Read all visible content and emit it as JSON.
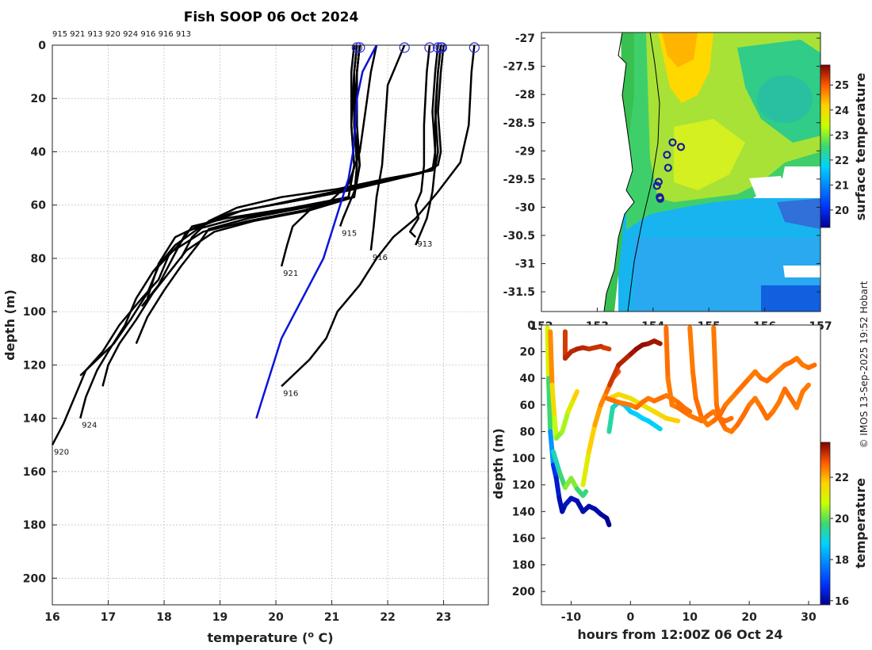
{
  "chart_data": [
    {
      "type": "line",
      "panel": "temperature-profiles",
      "title": "Fish SOOP 06 Oct 2024",
      "xlabel": "temperature (",
      "xlabel_sup": "o",
      "xlabel_tail": " C)",
      "ylabel": "depth (m)",
      "xlim": [
        16,
        23.8
      ],
      "ylim": [
        210,
        0
      ],
      "xticks": [
        16,
        17,
        18,
        19,
        20,
        21,
        22,
        23
      ],
      "yticks": [
        0,
        20,
        40,
        60,
        80,
        100,
        120,
        140,
        160,
        180,
        200
      ],
      "fish_id_row": "915 921 913 920 924 916 916 913",
      "surface_markers": [
        21.45,
        21.5,
        22.3,
        22.75,
        22.9,
        22.95,
        22.97,
        23.55
      ],
      "climatology": {
        "name": "climatology",
        "color": "#0a14d8",
        "x": [
          21.8,
          21.55,
          21.45,
          21.42,
          21.38,
          21.3,
          21.15,
          21.0,
          20.85,
          20.6,
          20.35,
          20.1,
          19.95,
          19.8,
          19.65
        ],
        "y": [
          0,
          10,
          20,
          30,
          40,
          50,
          60,
          70,
          80,
          90,
          100,
          110,
          120,
          130,
          140
        ]
      },
      "series": [
        {
          "label": "920",
          "x": [
            21.45,
            21.4,
            21.35,
            21.4,
            21.3,
            20.5,
            19.5,
            18.7,
            18.1,
            17.9,
            17.6,
            17.2,
            16.9,
            16.6,
            16.4,
            16.2,
            16.0
          ],
          "y": [
            0,
            10,
            30,
            45,
            57,
            62,
            66,
            70,
            78,
            88,
            95,
            105,
            115,
            122,
            132,
            142,
            150
          ]
        },
        {
          "label": "924",
          "x": [
            21.5,
            21.45,
            21.4,
            21.45,
            21.4,
            20.4,
            19.3,
            18.6,
            18.2,
            17.8,
            17.5,
            17.3,
            17.0,
            16.8,
            16.6,
            16.5
          ],
          "y": [
            0,
            10,
            30,
            45,
            57,
            61,
            65,
            69,
            75,
            85,
            95,
            105,
            115,
            122,
            132,
            140
          ]
        },
        {
          "label": "",
          "x": [
            21.5,
            21.45,
            21.4,
            21.5,
            21.4,
            20.6,
            19.6,
            18.9,
            18.4,
            18.1,
            17.8,
            17.5,
            17.2,
            17.0,
            16.9
          ],
          "y": [
            0,
            10,
            30,
            45,
            57,
            62,
            66,
            70,
            77,
            85,
            93,
            103,
            112,
            120,
            128
          ]
        },
        {
          "label": "",
          "x": [
            21.4,
            21.35,
            21.35,
            21.4,
            21.3,
            20.3,
            19.1,
            18.5,
            18.3,
            17.9,
            17.7,
            17.4,
            17.1,
            16.8,
            16.5
          ],
          "y": [
            0,
            10,
            30,
            45,
            57,
            61,
            65,
            68,
            74,
            83,
            93,
            103,
            112,
            118,
            124
          ]
        },
        {
          "label": "",
          "x": [
            21.45,
            21.4,
            21.4,
            21.45,
            21.4,
            20.5,
            19.5,
            18.8,
            18.6,
            18.3,
            18.0,
            17.7,
            17.5
          ],
          "y": [
            0,
            10,
            30,
            45,
            57,
            61,
            65,
            69,
            75,
            83,
            92,
            102,
            112
          ]
        },
        {
          "label": "",
          "x": [
            23.0,
            22.95,
            22.9,
            22.95,
            22.9,
            22.6,
            22.0,
            21.2,
            20.2,
            19.4,
            18.9,
            18.4,
            18.2,
            17.9,
            17.6
          ],
          "y": [
            0,
            10,
            25,
            40,
            45,
            48,
            51,
            55,
            59,
            62,
            66,
            70,
            78,
            90,
            98
          ]
        },
        {
          "label": "",
          "x": [
            22.95,
            22.9,
            22.85,
            22.9,
            22.85,
            22.4,
            21.7,
            20.8,
            19.9,
            19.2,
            18.6,
            18.2,
            17.9,
            17.7
          ],
          "y": [
            0,
            10,
            25,
            40,
            46,
            49,
            52,
            56,
            60,
            63,
            68,
            72,
            82,
            95
          ]
        },
        {
          "label": "",
          "x": [
            22.9,
            22.85,
            22.8,
            22.85,
            22.8,
            22.0,
            21.1,
            20.1,
            19.3,
            18.8,
            18.5,
            18.3
          ],
          "y": [
            0,
            10,
            25,
            40,
            47,
            50,
            54,
            57,
            61,
            66,
            72,
            80
          ]
        },
        {
          "label": "913",
          "x": [
            22.75,
            22.7,
            22.65,
            22.65,
            22.6,
            22.5,
            22.55,
            22.4,
            22.5
          ],
          "y": [
            0,
            10,
            30,
            45,
            55,
            60,
            65,
            70,
            72
          ]
        },
        {
          "label": "",
          "x": [
            22.95,
            22.9,
            22.85,
            22.85,
            22.8,
            22.75,
            22.7,
            22.6,
            22.5
          ],
          "y": [
            0,
            10,
            30,
            45,
            55,
            60,
            65,
            70,
            75
          ]
        },
        {
          "label": "915",
          "x": [
            21.5,
            21.45,
            21.45,
            21.5,
            21.4,
            21.3,
            21.2,
            21.15
          ],
          "y": [
            0,
            10,
            30,
            45,
            55,
            60,
            65,
            68
          ]
        },
        {
          "label": "916",
          "x": [
            22.3,
            22.2,
            22.0,
            21.95,
            21.9,
            21.8,
            21.75,
            21.7
          ],
          "y": [
            0,
            5,
            15,
            30,
            45,
            57,
            68,
            77
          ]
        },
        {
          "label": "921",
          "x": [
            21.8,
            21.7,
            21.6,
            21.5,
            21.3,
            21.0,
            20.6,
            20.3,
            20.2,
            20.1
          ],
          "y": [
            0,
            10,
            25,
            40,
            52,
            58,
            62,
            68,
            75,
            83
          ]
        },
        {
          "label": "916",
          "x": [
            23.55,
            23.5,
            23.45,
            23.3,
            22.9,
            22.5,
            22.1,
            21.8,
            21.5,
            21.1,
            20.9,
            20.6,
            20.3,
            20.1
          ],
          "y": [
            0,
            10,
            30,
            44,
            55,
            65,
            72,
            80,
            90,
            100,
            110,
            118,
            124,
            128
          ]
        }
      ]
    },
    {
      "type": "heatmap",
      "panel": "sst-map",
      "xlim": [
        152.0,
        157.0
      ],
      "ylim": [
        -31.85,
        -26.9
      ],
      "xticks": [
        152,
        153,
        154,
        155,
        156,
        157
      ],
      "yticks": [
        -27,
        -27.5,
        -28,
        -28.5,
        -29,
        -29.5,
        -30,
        -30.5,
        -31,
        -31.5
      ],
      "colorbar": {
        "label": "surface temperature",
        "range": [
          19.3,
          25.8
        ],
        "ticks": [
          20,
          21,
          22,
          23,
          24,
          25
        ]
      },
      "stations": [
        {
          "lon": 154.35,
          "lat": -28.85
        },
        {
          "lon": 154.5,
          "lat": -28.93
        },
        {
          "lon": 154.25,
          "lat": -29.07
        },
        {
          "lon": 154.27,
          "lat": -29.3
        },
        {
          "lon": 154.1,
          "lat": -29.55
        },
        {
          "lon": 154.07,
          "lat": -29.62
        },
        {
          "lon": 154.12,
          "lat": -29.82
        },
        {
          "lon": 154.13,
          "lat": -29.85
        }
      ]
    },
    {
      "type": "scatter",
      "panel": "depth-time",
      "xlabel": "hours from 12:00Z 06 Oct 24",
      "ylabel": "depth (m)",
      "xlim": [
        -15,
        32
      ],
      "ylim": [
        210,
        0
      ],
      "xticks": [
        -10,
        0,
        10,
        20,
        30
      ],
      "yticks": [
        0,
        20,
        40,
        60,
        80,
        100,
        120,
        140,
        160,
        180,
        200
      ],
      "colorbar": {
        "label": "temperature",
        "range": [
          15.8,
          23.7
        ],
        "ticks": [
          16,
          18,
          20,
          22
        ]
      },
      "tracks": [
        {
          "t": [
            -14,
            -13.8,
            -13.5,
            -13,
            -12.5,
            -12,
            -11.5,
            -11
          ],
          "d": [
            2,
            40,
            80,
            105,
            115,
            130,
            140,
            135
          ],
          "temp": [
            21.5,
            20.5,
            19,
            17,
            16.5,
            16.2,
            16,
            16.1
          ]
        },
        {
          "t": [
            -11,
            -10,
            -9,
            -8,
            -7,
            -6,
            -5,
            -4,
            -3.6
          ],
          "d": [
            135,
            130,
            132,
            140,
            136,
            138,
            142,
            145,
            150
          ],
          "temp": [
            16.2,
            16.3,
            16.1,
            16,
            16.1,
            16,
            16,
            15.9,
            15.8
          ]
        },
        {
          "t": [
            -13,
            -12,
            -11,
            -10,
            -9,
            -8,
            -7.5
          ],
          "d": [
            95,
            110,
            122,
            115,
            123,
            128,
            125
          ],
          "temp": [
            19,
            19.5,
            20,
            20.5,
            20,
            19.5,
            19.8
          ]
        },
        {
          "t": [
            -13.5,
            -13.2,
            -12.8,
            -12.5,
            -11.5,
            -10.5,
            -9.5,
            -9
          ],
          "d": [
            5,
            45,
            70,
            85,
            80,
            65,
            55,
            50
          ],
          "temp": [
            22.6,
            22,
            21,
            20.4,
            20.2,
            20.8,
            21.5,
            22
          ]
        },
        {
          "t": [
            -11,
            -11,
            -10,
            -9,
            -8,
            -7,
            -6,
            -5,
            -4.5,
            -3.6
          ],
          "d": [
            5,
            25,
            20,
            18,
            17,
            18,
            17,
            16,
            17,
            18
          ],
          "temp": [
            22.8,
            23.3,
            23.2,
            23.3,
            23.3,
            23.2,
            23.1,
            23.2,
            23.1,
            23
          ]
        },
        {
          "t": [
            -8,
            -7,
            -6,
            -5,
            -4,
            -3,
            -2
          ],
          "d": [
            120,
            95,
            75,
            60,
            50,
            40,
            35
          ],
          "temp": [
            20.8,
            21.5,
            22,
            22.2,
            22.5,
            22.7,
            22.9
          ]
        },
        {
          "t": [
            -3.6,
            -3.0,
            -2.0,
            -1,
            0,
            1,
            2,
            3,
            4,
            5
          ],
          "d": [
            80,
            62,
            58,
            60,
            65,
            67,
            70,
            72,
            75,
            78
          ],
          "temp": [
            19.5,
            19.3,
            19,
            18.8,
            18.6,
            18.7,
            18.9,
            18.6,
            18.8,
            18.9
          ]
        },
        {
          "t": [
            -3.5,
            -2,
            0,
            2,
            4,
            6,
            8
          ],
          "d": [
            55,
            52,
            55,
            60,
            65,
            70,
            72
          ],
          "temp": [
            21.8,
            21.6,
            21.5,
            21.3,
            21.5,
            21.7,
            21.8
          ]
        },
        {
          "t": [
            -3.5,
            -2,
            0,
            1,
            2,
            3,
            4,
            5
          ],
          "d": [
            45,
            30,
            22,
            18,
            15,
            14,
            12,
            14
          ],
          "temp": [
            23,
            23.2,
            23.4,
            23.5,
            23.6,
            23.5,
            23.4,
            23.5
          ]
        },
        {
          "t": [
            -4,
            -2,
            0,
            1,
            2,
            3,
            4,
            5,
            6,
            7,
            8,
            9,
            10
          ],
          "d": [
            55,
            58,
            60,
            62,
            58,
            55,
            57,
            55,
            53,
            55,
            58,
            62,
            65
          ],
          "temp": [
            22.6,
            22.5,
            22.4,
            22.5,
            22.6,
            22.4,
            22.5,
            22.6,
            22.5,
            22.4,
            22.5,
            22.6,
            22.5
          ]
        },
        {
          "t": [
            6,
            6.3,
            7,
            8,
            9,
            10,
            11,
            12,
            13,
            14,
            15,
            16,
            17
          ],
          "d": [
            2,
            40,
            60,
            62,
            65,
            68,
            70,
            72,
            68,
            65,
            70,
            72,
            70
          ],
          "temp": [
            22.6,
            22.5,
            22.4,
            22.5,
            22.6,
            22.5,
            22.4,
            22.5,
            22.6,
            22.5,
            22.4,
            22.5,
            22.6
          ]
        },
        {
          "t": [
            10,
            10.5,
            11,
            12,
            13,
            14,
            15,
            16,
            17,
            18,
            19,
            20,
            21,
            22,
            23,
            24,
            25,
            26,
            27,
            28,
            29,
            30,
            31
          ],
          "d": [
            2,
            35,
            55,
            70,
            75,
            72,
            68,
            60,
            55,
            50,
            45,
            40,
            35,
            40,
            42,
            38,
            34,
            30,
            28,
            25,
            30,
            32,
            30
          ],
          "temp": [
            22.5,
            22.4,
            22.6,
            22.5,
            22.4,
            22.5,
            22.6,
            22.5,
            22.4,
            22.5,
            22.6,
            22.5,
            22.4,
            22.5,
            22.6,
            22.5,
            22.4,
            22.5,
            22.6,
            22.5,
            22.4,
            22.5,
            22.6
          ]
        },
        {
          "t": [
            14,
            14.5,
            15,
            16,
            17,
            18,
            19,
            20,
            21,
            22,
            23,
            24,
            25,
            26,
            27,
            28,
            29,
            30
          ],
          "d": [
            2,
            60,
            70,
            78,
            80,
            75,
            68,
            60,
            55,
            62,
            70,
            65,
            58,
            48,
            55,
            62,
            50,
            45
          ],
          "temp": [
            22.4,
            22.5,
            22.6,
            22.5,
            22.4,
            22.5,
            22.6,
            22.5,
            22.4,
            22.5,
            22.6,
            22.5,
            22.4,
            22.5,
            22.6,
            22.5,
            22.4,
            22.5
          ]
        }
      ]
    }
  ],
  "credit": "© IMOS 13-Sep-2025 19:52 Hobart",
  "colors": {
    "profile": "#000000",
    "climatology": "#0a14d8",
    "station_marker": "#1a1aa0",
    "grid": "#bbbbbb"
  }
}
